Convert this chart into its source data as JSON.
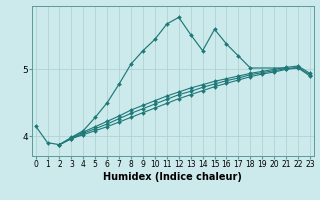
{
  "x_jagged": [
    0,
    1,
    2,
    3,
    4,
    5,
    6,
    7,
    8,
    9,
    10,
    11,
    12,
    13,
    14,
    15,
    16,
    17,
    18,
    21
  ],
  "y_jagged": [
    4.15,
    3.9,
    3.87,
    3.98,
    4.08,
    4.28,
    4.5,
    4.78,
    5.08,
    5.28,
    5.45,
    5.68,
    5.78,
    5.52,
    5.28,
    5.6,
    5.38,
    5.2,
    5.02,
    5.02
  ],
  "x_s1": [
    2,
    3,
    4,
    5,
    6,
    7,
    8,
    9,
    10,
    11,
    12,
    13,
    14,
    15,
    16,
    17,
    18,
    19,
    20,
    21,
    22,
    23
  ],
  "y_s1": [
    3.87,
    3.96,
    4.02,
    4.08,
    4.14,
    4.21,
    4.28,
    4.35,
    4.42,
    4.49,
    4.56,
    4.62,
    4.68,
    4.74,
    4.79,
    4.84,
    4.89,
    4.93,
    4.96,
    5.0,
    5.02,
    4.9
  ],
  "x_s2": [
    2,
    3,
    4,
    5,
    6,
    7,
    8,
    9,
    10,
    11,
    12,
    13,
    14,
    15,
    16,
    17,
    18,
    19,
    20,
    21,
    22,
    23
  ],
  "y_s2": [
    3.87,
    3.96,
    4.04,
    4.11,
    4.18,
    4.26,
    4.34,
    4.41,
    4.48,
    4.55,
    4.62,
    4.67,
    4.73,
    4.78,
    4.83,
    4.87,
    4.92,
    4.95,
    4.98,
    5.01,
    5.03,
    4.92
  ],
  "x_s3": [
    2,
    3,
    4,
    5,
    6,
    7,
    8,
    9,
    10,
    11,
    12,
    13,
    14,
    15,
    16,
    17,
    18,
    19,
    20,
    21,
    22,
    23
  ],
  "y_s3": [
    3.87,
    3.97,
    4.06,
    4.14,
    4.22,
    4.3,
    4.39,
    4.46,
    4.53,
    4.6,
    4.66,
    4.72,
    4.77,
    4.82,
    4.86,
    4.9,
    4.94,
    4.97,
    5.0,
    5.03,
    5.05,
    4.94
  ],
  "bg_color": "#cce9eb",
  "line_color": "#1e7878",
  "grid_color": "#aacfcf",
  "xlabel": "Humidex (Indice chaleur)",
  "ylim": [
    3.7,
    5.95
  ],
  "xlim": [
    -0.3,
    23.3
  ],
  "yticks": [
    4,
    5
  ],
  "xticks": [
    0,
    1,
    2,
    3,
    4,
    5,
    6,
    7,
    8,
    9,
    10,
    11,
    12,
    13,
    14,
    15,
    16,
    17,
    18,
    19,
    20,
    21,
    22,
    23
  ],
  "xlabel_fontsize": 7,
  "tick_fontsize": 5.5
}
